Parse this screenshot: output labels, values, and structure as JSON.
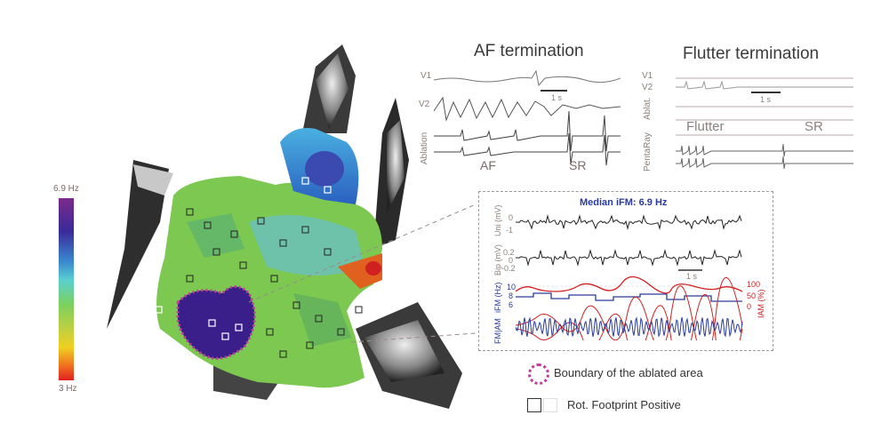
{
  "colorbar": {
    "max_label": "6.9 Hz",
    "min_label": "3 Hz"
  },
  "af_panel": {
    "title": "AF termination",
    "lead_v1": "V1",
    "lead_v2": "V2",
    "scale_label": "1 s",
    "side_label": "Ablation",
    "rhythm_before": "AF",
    "rhythm_after": "SR"
  },
  "flutter_panel": {
    "title": "Flutter termination",
    "lead_v1": "V1",
    "lead_v2": "V2",
    "ablat_label": "Ablat.",
    "scale_label": "1 s",
    "side_label": "PentaRay",
    "rhythm_before": "Flutter",
    "rhythm_after": "SR"
  },
  "inset": {
    "title": "Median iFM: 6.9 Hz",
    "uni_label": "Uni (mV)",
    "bip_label": "Bip (mV)",
    "ifm_label": "iFM (Hz)",
    "fmam_label": "FM|AM",
    "iam_label": "IAM (%)",
    "uni_ticks": [
      "0",
      "-1"
    ],
    "bip_ticks": [
      "0.2",
      "0",
      "-0.2"
    ],
    "ifm_ticks": [
      "10",
      "8",
      "6"
    ],
    "iam_ticks": [
      "100",
      "50",
      "0"
    ],
    "scale_label": "1 s"
  },
  "legend": {
    "boundary_label": "Boundary of the ablated area",
    "footprint_label": "Rot. Footprint Positive"
  },
  "colors": {
    "inset_title": "#2a3a9a",
    "ifm_line": "#2a3a9a",
    "iam_line": "#d02020",
    "boundary": "#c33a9c"
  }
}
